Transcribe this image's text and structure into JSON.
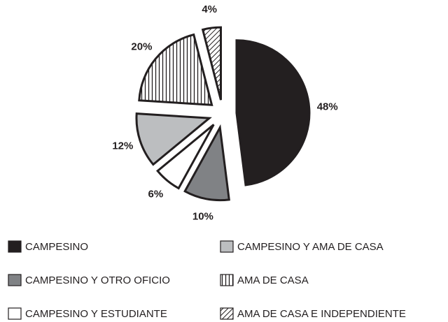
{
  "chart_data": {
    "type": "pie",
    "categories": [
      "CAMPESINO",
      "CAMPESINO Y OTRO OFICIO",
      "CAMPESINO Y ESTUDIANTE",
      "CAMPESINO Y AMA DE CASA",
      "AMA DE CASA",
      "AMA DE CASA E INDEPENDIENTE"
    ],
    "values": [
      48,
      10,
      6,
      12,
      20,
      4
    ],
    "value_labels": [
      "48%",
      "10%",
      "6%",
      "12%",
      "20%",
      "4%"
    ],
    "colors": [
      "#231f20",
      "#808285",
      "#ffffff",
      "#bcbec0",
      "#ffffff",
      "#ffffff"
    ],
    "hatch": [
      null,
      null,
      null,
      null,
      "vertical",
      "diagonal"
    ],
    "legend": "bottom"
  }
}
